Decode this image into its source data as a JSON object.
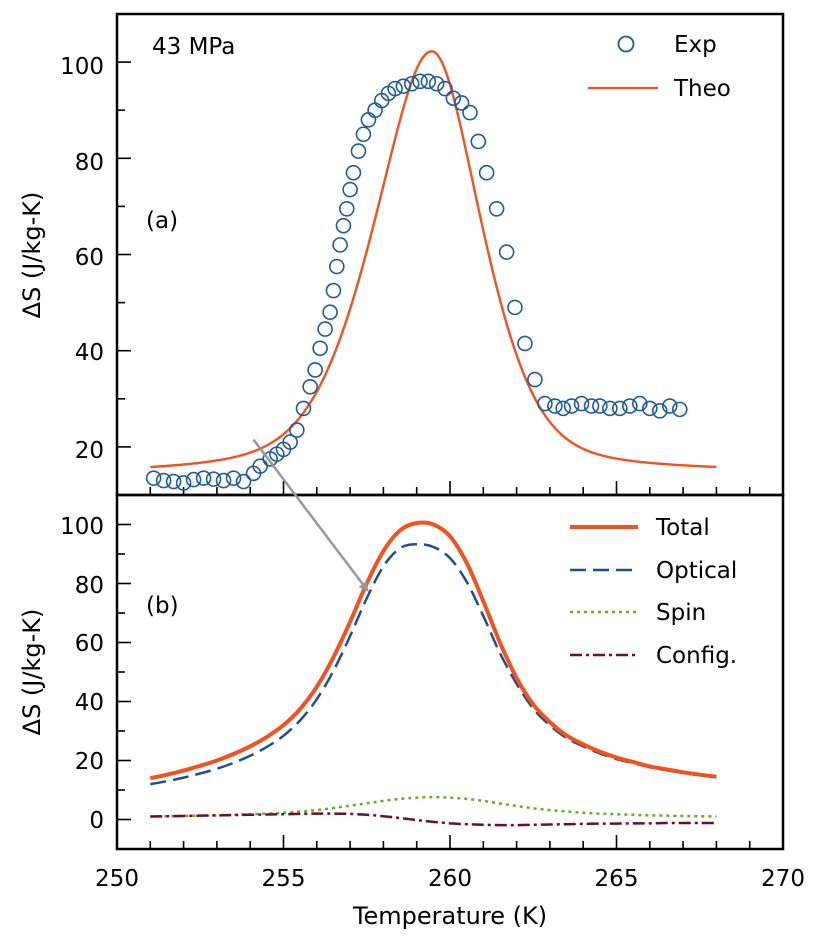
{
  "chart_data": [
    {
      "panel": "a",
      "type": "scatter+line",
      "annotation": "43 MPa",
      "panel_label": "(a)",
      "ylabel": "ΔS (J/kg-K)",
      "xlim": [
        250,
        270
      ],
      "ylim": [
        10,
        110
      ],
      "yticks": [
        20,
        40,
        60,
        80,
        100
      ],
      "ytick_labels": [
        "20",
        "40",
        "60",
        "80",
        "100"
      ],
      "legend_position": "top-right",
      "series": [
        {
          "name": "Exp",
          "kind": "markers",
          "color": "#1f5b99",
          "x": [
            251.1,
            251.4,
            251.7,
            252.0,
            252.3,
            252.6,
            252.9,
            253.2,
            253.5,
            253.8,
            254.1,
            254.3,
            254.6,
            254.8,
            255.0,
            255.2,
            255.4,
            255.6,
            255.8,
            255.95,
            256.1,
            256.25,
            256.4,
            256.5,
            256.6,
            256.7,
            256.8,
            256.9,
            257.0,
            257.1,
            257.25,
            257.4,
            257.55,
            257.75,
            257.95,
            258.15,
            258.35,
            258.6,
            258.85,
            259.1,
            259.35,
            259.6,
            259.85,
            260.1,
            260.35,
            260.6,
            260.85,
            261.1,
            261.4,
            261.7,
            261.95,
            262.25,
            262.55,
            262.85,
            263.15,
            263.4,
            263.65,
            263.95,
            264.25,
            264.5,
            264.8,
            265.1,
            265.4,
            265.7,
            266.0,
            266.3,
            266.6,
            266.9
          ],
          "y": [
            13.5,
            13.0,
            12.8,
            12.5,
            13.2,
            13.5,
            13.3,
            13.0,
            13.5,
            12.8,
            14.5,
            16.0,
            17.5,
            18.5,
            19.5,
            21.0,
            23.5,
            28.0,
            32.5,
            36.0,
            40.5,
            44.5,
            48.0,
            52.5,
            57.5,
            62.0,
            66.0,
            69.5,
            73.5,
            77.0,
            81.5,
            85.0,
            88.0,
            90.0,
            92.0,
            93.5,
            94.5,
            95.0,
            95.5,
            96.0,
            96.0,
            95.5,
            94.5,
            92.5,
            91.5,
            89.5,
            83.5,
            77.0,
            69.5,
            60.5,
            49.0,
            41.5,
            34.0,
            29.0,
            28.5,
            28.0,
            28.5,
            29.0,
            28.5,
            28.5,
            28.0,
            28.0,
            28.5,
            29.0,
            28.0,
            27.5,
            28.5,
            27.8
          ]
        },
        {
          "name": "Theo",
          "kind": "line",
          "color": "#f4511e",
          "model": {
            "center": 259.45,
            "amplitude": 88,
            "sigma_left": 1.85,
            "sigma_right": 1.6,
            "baseline": [
              [
                251,
                14
              ],
              [
                268,
                14.5
              ]
            ],
            "tail": 60
          }
        }
      ]
    },
    {
      "panel": "b",
      "type": "line",
      "panel_label": "(b)",
      "ylabel": "ΔS (J/kg-K)",
      "xlabel": "Temperature (K)",
      "xlim": [
        250,
        270
      ],
      "xticks": [
        250,
        255,
        260,
        265,
        270
      ],
      "xtick_labels": [
        "250",
        "255",
        "260",
        "265",
        "270"
      ],
      "ylim": [
        -10,
        110
      ],
      "yticks": [
        0,
        20,
        40,
        60,
        80,
        100
      ],
      "ytick_labels": [
        "0",
        "20",
        "40",
        "60",
        "80",
        "100"
      ],
      "legend_position": "top-right",
      "series": [
        {
          "name": "Total",
          "color": "#f4511e",
          "style": "solid"
        },
        {
          "name": "Optical",
          "color": "#1f4e8c",
          "style": "dashed"
        },
        {
          "name": "Spin",
          "color": "#6aaa2a",
          "style": "dotted"
        },
        {
          "name": "Config.",
          "color": "#6b0f2a",
          "style": "dashdot"
        }
      ],
      "x": [
        251,
        251.5,
        252,
        252.5,
        253,
        253.5,
        254,
        254.5,
        255,
        255.5,
        256,
        256.5,
        257,
        257.5,
        258,
        258.5,
        259,
        259.5,
        260,
        260.5,
        261,
        261.5,
        262,
        262.5,
        263,
        263.5,
        264,
        264.5,
        265,
        265.5,
        266,
        266.5,
        267,
        267.5,
        268
      ],
      "values": {
        "Total": [
          14.0,
          15.2,
          16.6,
          18.2,
          20.0,
          22.2,
          24.8,
          28.0,
          32.0,
          37.5,
          45.0,
          55.0,
          67.0,
          80.0,
          91.0,
          98.0,
          100.5,
          100.0,
          96.0,
          87.0,
          74.0,
          60.0,
          48.0,
          39.0,
          33.0,
          28.5,
          25.5,
          23.0,
          21.0,
          19.5,
          18.0,
          17.0,
          16.0,
          15.2,
          14.5
        ],
        "Optical": [
          12.0,
          13.0,
          14.2,
          15.6,
          17.2,
          19.2,
          21.6,
          24.6,
          28.4,
          33.6,
          40.8,
          50.4,
          62.2,
          75.0,
          85.8,
          92.0,
          93.3,
          92.4,
          88.6,
          80.6,
          69.0,
          56.4,
          46.0,
          37.6,
          31.9,
          27.6,
          24.8,
          22.4,
          20.5,
          19.1,
          17.7,
          16.7,
          15.8,
          15.0,
          14.4
        ],
        "Spin": [
          1.0,
          1.1,
          1.2,
          1.3,
          1.4,
          1.6,
          1.8,
          2.0,
          2.3,
          2.7,
          3.2,
          3.9,
          4.7,
          5.5,
          6.3,
          7.0,
          7.4,
          7.6,
          7.4,
          7.0,
          6.3,
          5.4,
          4.6,
          3.8,
          3.2,
          2.7,
          2.3,
          2.0,
          1.8,
          1.6,
          1.4,
          1.3,
          1.2,
          1.1,
          1.0
        ],
        "Config.": [
          1.0,
          1.1,
          1.2,
          1.3,
          1.4,
          1.5,
          1.6,
          1.7,
          1.8,
          1.9,
          2.0,
          2.0,
          1.9,
          1.6,
          1.1,
          0.5,
          -0.2,
          -0.8,
          -1.3,
          -1.6,
          -1.8,
          -1.9,
          -1.9,
          -1.8,
          -1.7,
          -1.6,
          -1.5,
          -1.4,
          -1.4,
          -1.3,
          -1.3,
          -1.2,
          -1.2,
          -1.2,
          -1.2
        ]
      }
    }
  ],
  "arrow": {
    "from": {
      "x": 254.1,
      "y": 21.5,
      "panel": "a"
    },
    "to": {
      "x": 257.7,
      "y": 75,
      "panel": "b"
    },
    "color": "#999999"
  }
}
